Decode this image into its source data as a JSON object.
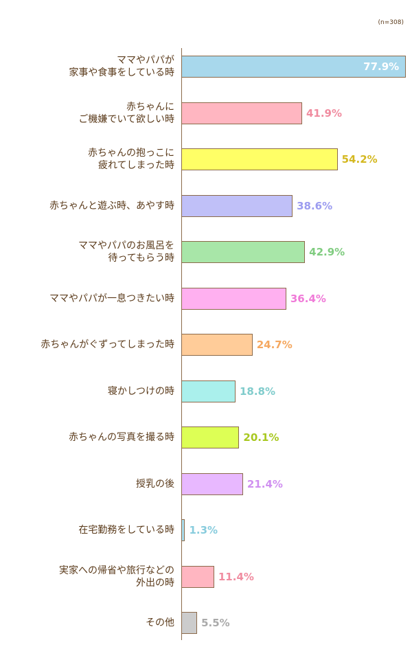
{
  "chart_data": {
    "type": "bar",
    "orientation": "horizontal",
    "note": "(n=308)",
    "categories": [
      "ママやパパが\n家事や食事をしている時",
      "赤ちゃんに\nご機嫌でいて欲しい時",
      "赤ちゃんの抱っこに\n疲れてしまった時",
      "赤ちゃんと遊ぶ時、あやす時",
      "ママやパパのお風呂を\n待ってもらう時",
      "ママやパパが一息つきたい時",
      "赤ちゃんがぐずってしまった時",
      "寝かしつけの時",
      "赤ちゃんの写真を撮る時",
      "授乳の後",
      "在宅勤務をしている時",
      "実家への帰省や旅行などの\n外出の時",
      "その他"
    ],
    "values": [
      77.9,
      41.9,
      54.2,
      38.6,
      42.9,
      36.4,
      24.7,
      18.8,
      20.1,
      21.4,
      1.3,
      11.4,
      5.5
    ],
    "value_labels": [
      "77.9%",
      "41.9%",
      "54.2%",
      "38.6%",
      "42.9%",
      "36.4%",
      "24.7%",
      "18.8%",
      "20.1%",
      "21.4%",
      "1.3%",
      "11.4%",
      "5.5%"
    ],
    "colors": [
      "#a8d8ec",
      "#ffb6c1",
      "#ffff66",
      "#c0c0f8",
      "#a8e6a8",
      "#ffb0f0",
      "#ffcc99",
      "#aaf0ec",
      "#ddff55",
      "#e8b8ff",
      "#aaddee",
      "#ffb6c1",
      "#cccccc"
    ],
    "label_colors": [
      "#ffffff",
      "#f08ca0",
      "#d4b820",
      "#9c9cf0",
      "#80cc80",
      "#f07ad8",
      "#f5a860",
      "#80cccc",
      "#a8c820",
      "#d090f0",
      "#88ccdd",
      "#f08ca0",
      "#aaaaaa"
    ]
  }
}
